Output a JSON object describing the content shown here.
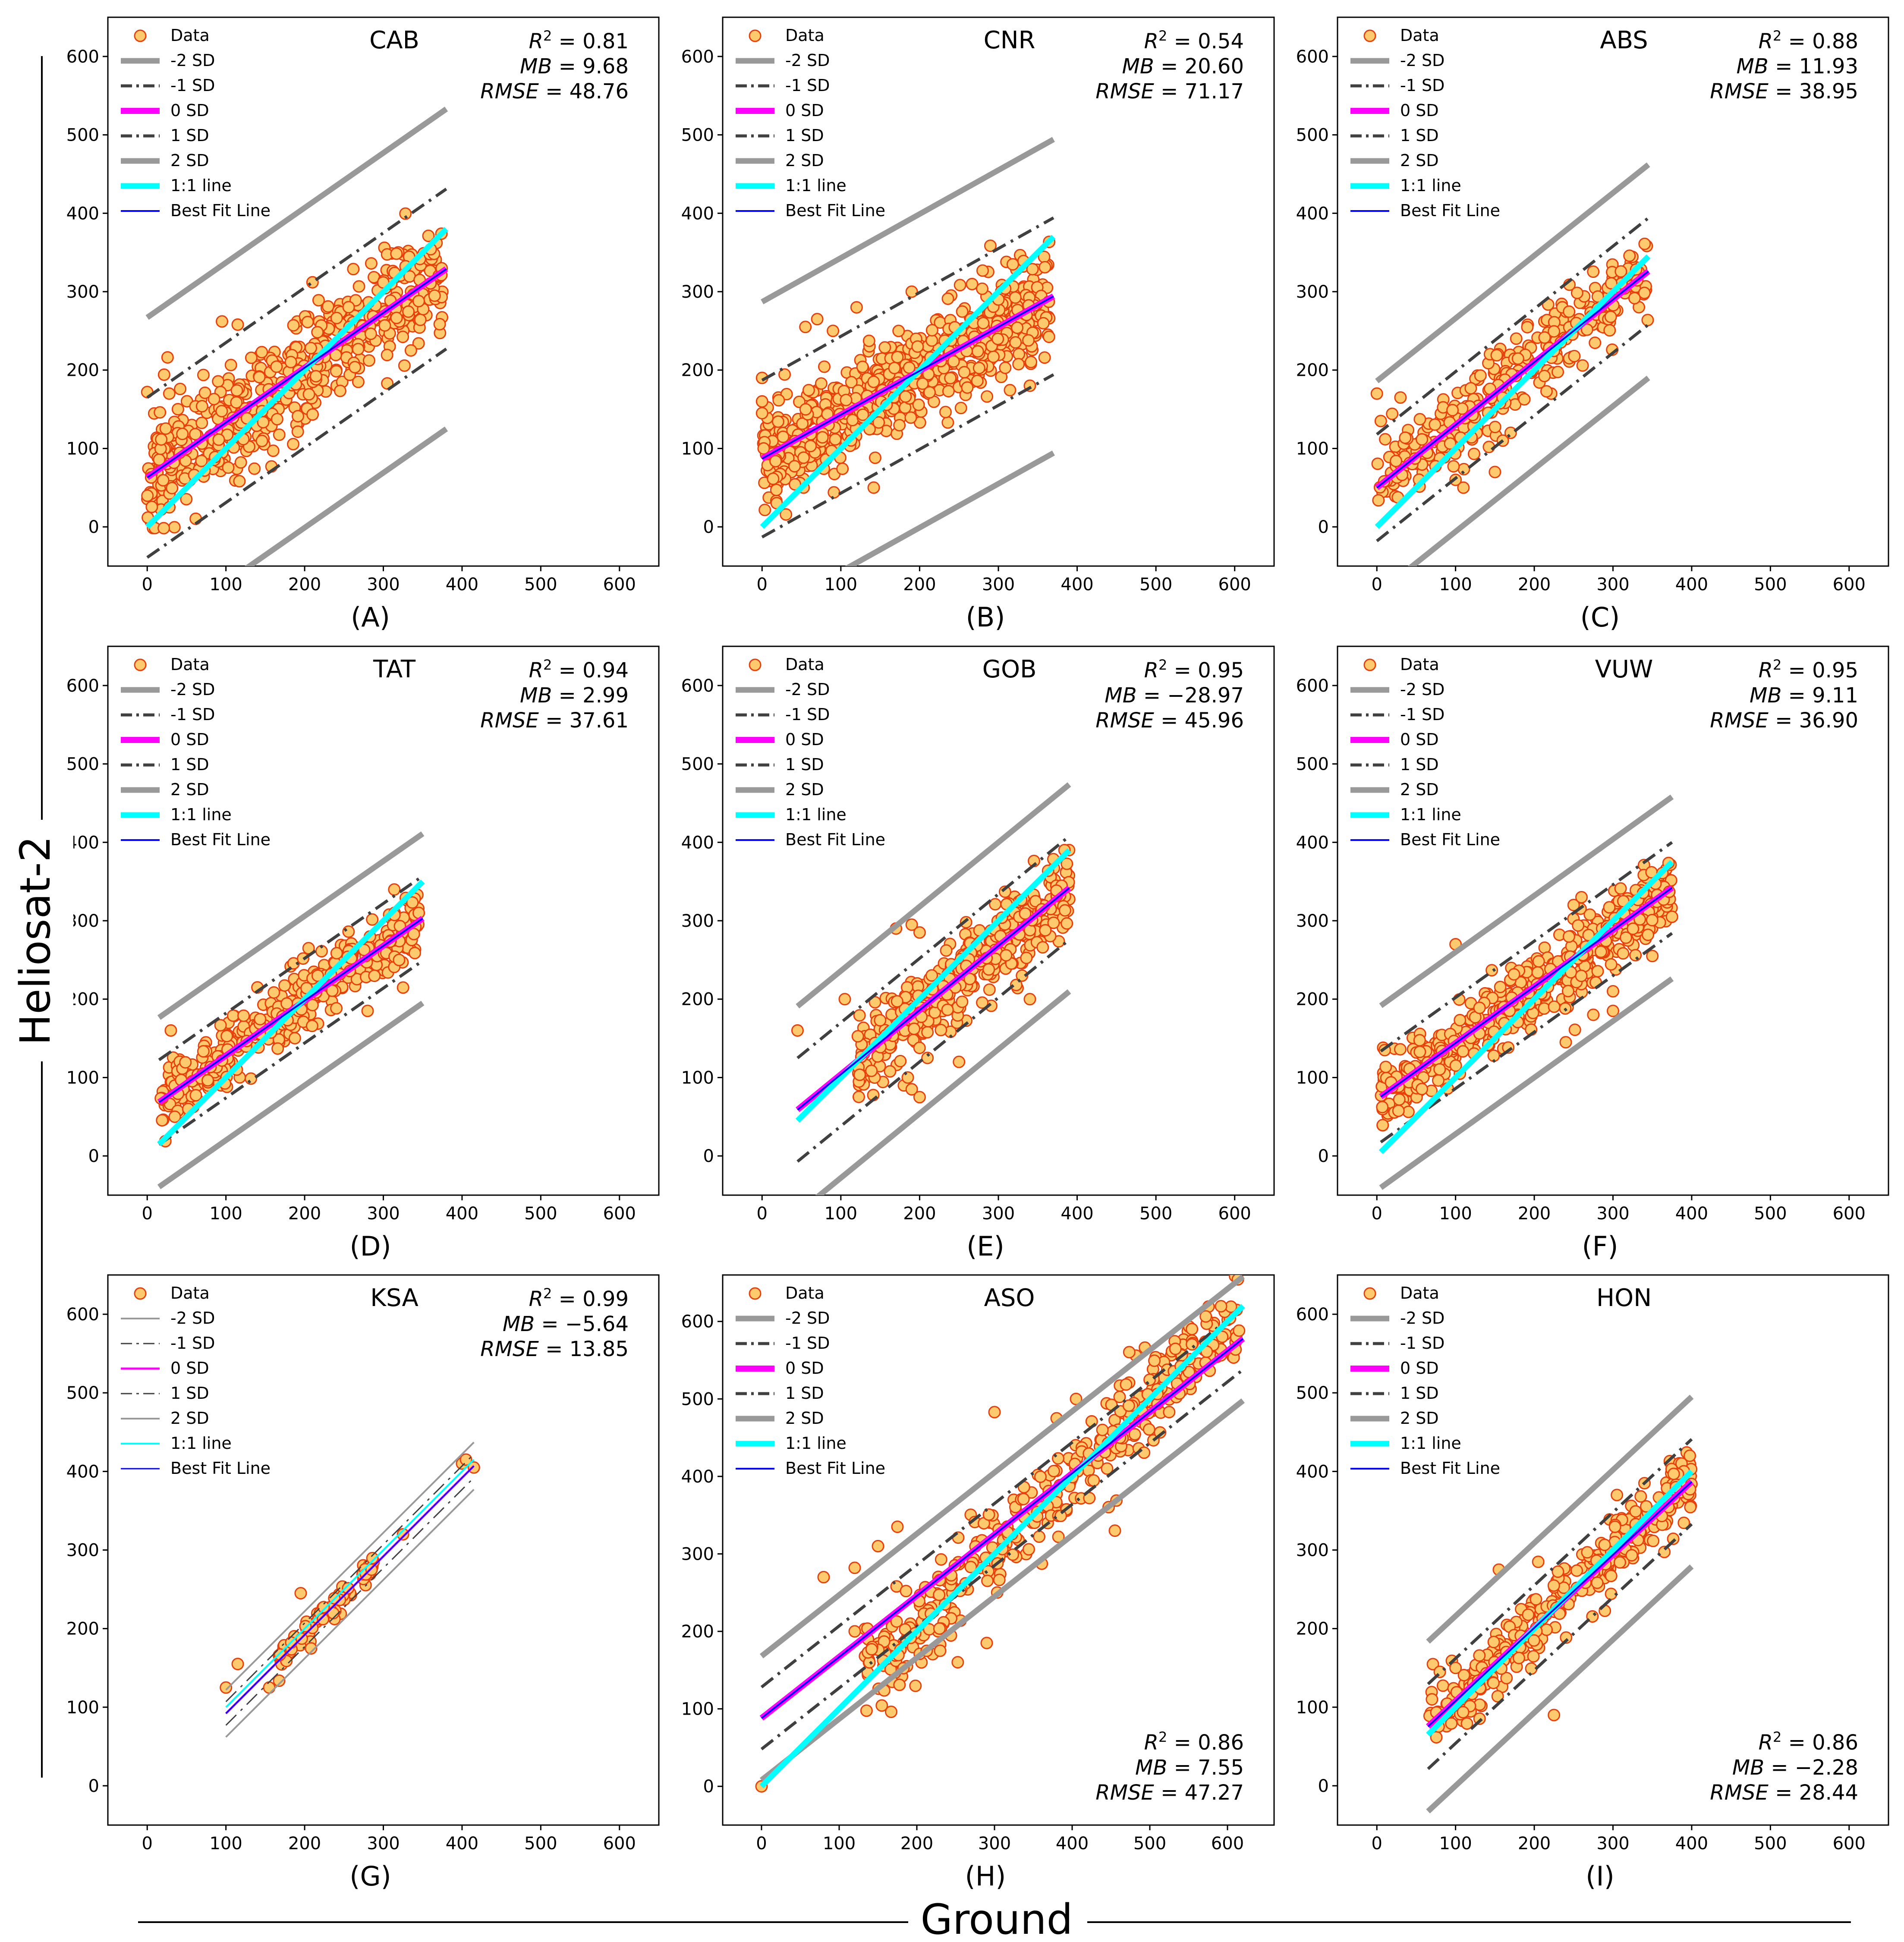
{
  "figure": {
    "ylabel": "Heliosat-2",
    "xlabel": "Ground",
    "colors": {
      "data_face": "#ffc96e",
      "data_edge": "#e8400c",
      "sd2": "#999999",
      "sd1": "#404040",
      "sd0": "#ff00ff",
      "one_to_one": "#00ffff",
      "best_fit": "#0000ff"
    }
  },
  "legend_labels": [
    "Data",
    "-2 SD",
    "-1 SD",
    "0 SD",
    "1 SD",
    "2 SD",
    "1:1 line",
    "Best Fit Line"
  ],
  "x_ticks": [
    0,
    100,
    200,
    300,
    400,
    500,
    600
  ],
  "y_ticks": [
    0,
    100,
    200,
    300,
    400,
    500,
    600
  ],
  "chart_data": [
    {
      "type": "scatter",
      "panel_label": "(A)",
      "site": "CAB",
      "stats": {
        "r2": "0.81",
        "mb": "9.68",
        "rmse": "48.76"
      },
      "stats_position": "top-right",
      "xlim": [
        -50,
        650
      ],
      "ylim": [
        -50,
        650
      ],
      "line_range": [
        0,
        380
      ],
      "fit": {
        "slope": 0.7,
        "intercept": 63
      },
      "sd": 102,
      "sd_width": "thick",
      "scatter": {
        "n": 560,
        "xmin": 0,
        "xmax": 375,
        "noise": 38,
        "seed": 11,
        "center": "fit"
      },
      "outliers": [
        [
          0,
          172
        ],
        [
          5,
          63
        ],
        [
          95,
          262
        ],
        [
          115,
          258
        ],
        [
          210,
          312
        ],
        [
          305,
          183
        ],
        [
          335,
          225
        ],
        [
          28,
          170
        ]
      ]
    },
    {
      "type": "scatter",
      "panel_label": "(B)",
      "site": "CNR",
      "stats": {
        "r2": "0.54",
        "mb": "20.60",
        "rmse": "71.17"
      },
      "stats_position": "top-right",
      "xlim": [
        -50,
        650
      ],
      "ylim": [
        -50,
        650
      ],
      "line_range": [
        0,
        370
      ],
      "fit": {
        "slope": 0.56,
        "intercept": 87
      },
      "sd": 100,
      "sd_width": "thick",
      "scatter": {
        "n": 700,
        "xmin": 0,
        "xmax": 365,
        "noise": 32,
        "seed": 23,
        "center": "fit"
      },
      "outliers": [
        [
          0,
          190
        ],
        [
          0,
          160
        ],
        [
          0,
          145
        ],
        [
          2,
          100
        ],
        [
          55,
          255
        ],
        [
          70,
          265
        ],
        [
          120,
          280
        ],
        [
          190,
          300
        ],
        [
          300,
          290
        ],
        [
          340,
          180
        ],
        [
          90,
          250
        ]
      ]
    },
    {
      "type": "scatter",
      "panel_label": "(C)",
      "site": "ABS",
      "stats": {
        "r2": "0.88",
        "mb": "11.93",
        "rmse": "38.95"
      },
      "stats_position": "top-right",
      "xlim": [
        -50,
        650
      ],
      "ylim": [
        -50,
        650
      ],
      "line_range": [
        0,
        345
      ],
      "fit": {
        "slope": 0.8,
        "intercept": 50
      },
      "sd": 68,
      "sd_width": "thick",
      "scatter": {
        "n": 320,
        "xmin": 0,
        "xmax": 345,
        "noise": 26,
        "seed": 37,
        "center": "fit"
      },
      "outliers": [
        [
          0,
          170
        ],
        [
          5,
          135
        ],
        [
          30,
          165
        ],
        [
          100,
          60
        ],
        [
          110,
          50
        ],
        [
          150,
          70
        ],
        [
          160,
          110
        ],
        [
          170,
          120
        ]
      ]
    },
    {
      "type": "scatter",
      "panel_label": "(D)",
      "site": "TAT",
      "stats": {
        "r2": "0.94",
        "mb": "2.99",
        "rmse": "37.61"
      },
      "stats_position": "top-right",
      "xlim": [
        -50,
        650
      ],
      "ylim": [
        -50,
        650
      ],
      "line_range": [
        15,
        350
      ],
      "fit": {
        "slope": 0.7,
        "intercept": 58
      },
      "sd": 54,
      "sd_width": "thick",
      "scatter": {
        "n": 380,
        "xmin": 15,
        "xmax": 345,
        "noise": 22,
        "seed": 41,
        "center": "fit"
      },
      "outliers": [
        [
          30,
          160
        ],
        [
          35,
          50
        ],
        [
          140,
          215
        ],
        [
          205,
          265
        ],
        [
          280,
          185
        ],
        [
          320,
          250
        ],
        [
          345,
          310
        ]
      ]
    },
    {
      "type": "scatter",
      "panel_label": "(E)",
      "site": "GOB",
      "stats": {
        "r2": "0.95",
        "mb": "−28.97",
        "rmse": "45.96"
      },
      "stats_position": "top-right",
      "xlim": [
        -50,
        650
      ],
      "ylim": [
        -50,
        650
      ],
      "line_range": [
        45,
        390
      ],
      "fit": {
        "slope": 0.82,
        "intercept": 22
      },
      "sd": 66,
      "sd_width": "thick",
      "scatter": {
        "n": 400,
        "xmin": 120,
        "xmax": 390,
        "noise": 26,
        "seed": 53,
        "center": "fit"
      },
      "outliers": [
        [
          45,
          160
        ],
        [
          105,
          200
        ],
        [
          170,
          290
        ],
        [
          190,
          295
        ],
        [
          200,
          285
        ],
        [
          180,
          90
        ],
        [
          190,
          85
        ],
        [
          200,
          75
        ],
        [
          185,
          100
        ],
        [
          210,
          125
        ],
        [
          250,
          120
        ],
        [
          340,
          200
        ],
        [
          330,
          230
        ]
      ]
    },
    {
      "type": "scatter",
      "panel_label": "(F)",
      "site": "VUW",
      "stats": {
        "r2": "0.95",
        "mb": "9.11",
        "rmse": "36.90"
      },
      "stats_position": "top-right",
      "xlim": [
        -50,
        650
      ],
      "ylim": [
        -50,
        650
      ],
      "line_range": [
        5,
        375
      ],
      "fit": {
        "slope": 0.72,
        "intercept": 72
      },
      "sd": 58,
      "sd_width": "thick",
      "scatter": {
        "n": 520,
        "xmin": 5,
        "xmax": 375,
        "noise": 23,
        "seed": 61,
        "center": "fit"
      },
      "outliers": [
        [
          100,
          270
        ],
        [
          240,
          145
        ],
        [
          275,
          180
        ],
        [
          300,
          185
        ],
        [
          300,
          210
        ],
        [
          250,
          320
        ],
        [
          260,
          330
        ],
        [
          350,
          255
        ],
        [
          10,
          135
        ]
      ]
    },
    {
      "type": "scatter",
      "panel_label": "(G)",
      "site": "KSA",
      "stats": {
        "r2": "0.99",
        "mb": "−5.64",
        "rmse": "13.85"
      },
      "stats_position": "top-right",
      "xlim": [
        -50,
        650
      ],
      "ylim": [
        -50,
        650
      ],
      "line_range": [
        100,
        415
      ],
      "fit": {
        "slope": 1.0,
        "intercept": -8
      },
      "sd": 15,
      "sd_width": "thin",
      "scatter": {
        "n": 70,
        "xmin": 160,
        "xmax": 290,
        "noise": 10,
        "seed": 71,
        "center": "fit"
      },
      "outliers": [
        [
          100,
          125
        ],
        [
          115,
          155
        ],
        [
          155,
          125
        ],
        [
          195,
          245
        ],
        [
          285,
          275
        ],
        [
          325,
          320
        ],
        [
          400,
          410
        ],
        [
          405,
          415
        ],
        [
          415,
          405
        ]
      ]
    },
    {
      "type": "scatter",
      "panel_label": "(H)",
      "site": "ASO",
      "stats": {
        "r2": "0.86",
        "mb": "7.55",
        "rmse": "47.27"
      },
      "stats_position": "bottom-right",
      "xlim": [
        -50,
        660
      ],
      "ylim": [
        -50,
        660
      ],
      "line_range": [
        0,
        620
      ],
      "fit": {
        "slope": 0.79,
        "intercept": 88
      },
      "sd": 40,
      "sd_width": "thick",
      "scatter": {
        "n": 380,
        "xmin": 130,
        "xmax": 615,
        "noise": 30,
        "seed": 83,
        "center": "ground"
      },
      "outliers": [
        [
          0,
          0
        ],
        [
          80,
          270
        ],
        [
          120,
          282
        ],
        [
          150,
          310
        ],
        [
          175,
          335
        ],
        [
          300,
          483
        ],
        [
          380,
          475
        ],
        [
          405,
          500
        ],
        [
          455,
          330
        ],
        [
          290,
          185
        ],
        [
          230,
          175
        ],
        [
          120,
          200
        ]
      ]
    },
    {
      "type": "scatter",
      "panel_label": "(I)",
      "site": "HON",
      "stats": {
        "r2": "0.86",
        "mb": "−2.28",
        "rmse": "28.44"
      },
      "stats_position": "bottom-right",
      "xlim": [
        -50,
        650
      ],
      "ylim": [
        -50,
        650
      ],
      "line_range": [
        65,
        400
      ],
      "fit": {
        "slope": 0.93,
        "intercept": 15
      },
      "sd": 54,
      "sd_width": "thick",
      "scatter": {
        "n": 330,
        "xmin": 65,
        "xmax": 400,
        "noise": 24,
        "seed": 97,
        "center": "fit"
      },
      "outliers": [
        [
          70,
          110
        ],
        [
          80,
          145
        ],
        [
          100,
          150
        ],
        [
          155,
          275
        ],
        [
          205,
          285
        ],
        [
          225,
          90
        ],
        [
          305,
          370
        ],
        [
          340,
          385
        ],
        [
          380,
          380
        ]
      ]
    }
  ]
}
